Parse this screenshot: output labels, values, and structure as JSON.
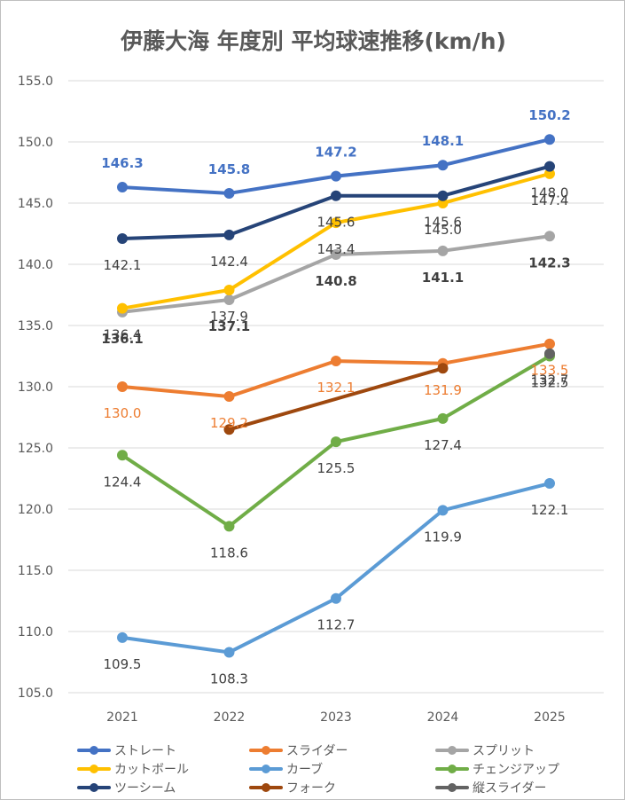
{
  "chart_data": {
    "type": "line",
    "title": "伊藤大海 年度別 平均球速推移(km/h)",
    "xlabel": "",
    "ylabel": "",
    "categories": [
      "2021",
      "2022",
      "2023",
      "2024",
      "2025"
    ],
    "ylim": [
      105.0,
      155.0
    ],
    "yticks": [
      "105.0",
      "110.0",
      "115.0",
      "120.0",
      "125.0",
      "130.0",
      "135.0",
      "140.0",
      "145.0",
      "150.0",
      "155.0"
    ],
    "grid": true,
    "legend_position": "bottom",
    "series": [
      {
        "name": "ストレート",
        "color": "#4472C4",
        "values": [
          146.3,
          145.8,
          147.2,
          148.1,
          150.2
        ],
        "labels": [
          "146.3",
          "145.8",
          "147.2",
          "148.1",
          "150.2"
        ],
        "label_color": "#4472C4",
        "label_pos": "above",
        "bold": true
      },
      {
        "name": "スライダー",
        "color": "#ED7D31",
        "values": [
          130.0,
          129.2,
          132.1,
          131.9,
          133.5
        ],
        "labels": [
          "130.0",
          "129.2",
          "132.1",
          "131.9",
          "133.5"
        ],
        "label_color": "#ED7D31",
        "label_pos": "below",
        "bold": false
      },
      {
        "name": "スプリット",
        "color": "#A5A5A5",
        "values": [
          136.1,
          137.1,
          140.8,
          141.1,
          142.3
        ],
        "labels": [
          "136.1",
          "137.1",
          "140.8",
          "141.1",
          "142.3"
        ],
        "label_color": "#404040",
        "label_pos": "below",
        "bold": true
      },
      {
        "name": "カットボール",
        "color": "#FFC000",
        "values": [
          136.4,
          137.9,
          143.4,
          145.0,
          147.4
        ],
        "labels": [
          "136.4",
          "137.9",
          "143.4",
          "145.0",
          "147.4"
        ],
        "label_color": "#404040",
        "label_pos": "below",
        "bold": false
      },
      {
        "name": "カーブ",
        "color": "#5B9BD5",
        "values": [
          109.5,
          108.3,
          112.7,
          119.9,
          122.1
        ],
        "labels": [
          "109.5",
          "108.3",
          "112.7",
          "119.9",
          "122.1"
        ],
        "label_color": "#404040",
        "label_pos": "below",
        "bold": false
      },
      {
        "name": "チェンジアップ",
        "color": "#70AD47",
        "values": [
          124.4,
          118.6,
          125.5,
          127.4,
          132.5
        ],
        "labels": [
          "124.4",
          "118.6",
          "125.5",
          "127.4",
          "132.5"
        ],
        "label_color": "#404040",
        "label_pos": "below",
        "bold": false
      },
      {
        "name": "ツーシーム",
        "color": "#264478",
        "values": [
          142.1,
          142.4,
          145.6,
          145.6,
          148.0
        ],
        "labels": [
          "142.1",
          "142.4",
          "145.6",
          "145.6",
          "148.0"
        ],
        "label_color": "#404040",
        "label_pos": "below",
        "bold": false
      },
      {
        "name": "フォーク",
        "color": "#9E480E",
        "values": [
          null,
          126.5,
          null,
          131.5,
          null
        ],
        "labels": [
          null,
          null,
          null,
          null,
          null
        ],
        "label_color": "#404040",
        "label_pos": "below",
        "bold": false
      },
      {
        "name": "縦スライダー",
        "color": "#636363",
        "values": [
          null,
          null,
          null,
          null,
          132.7
        ],
        "labels": [
          null,
          null,
          null,
          null,
          "132.7"
        ],
        "label_color": "#404040",
        "label_pos": "below",
        "bold": false
      }
    ]
  }
}
